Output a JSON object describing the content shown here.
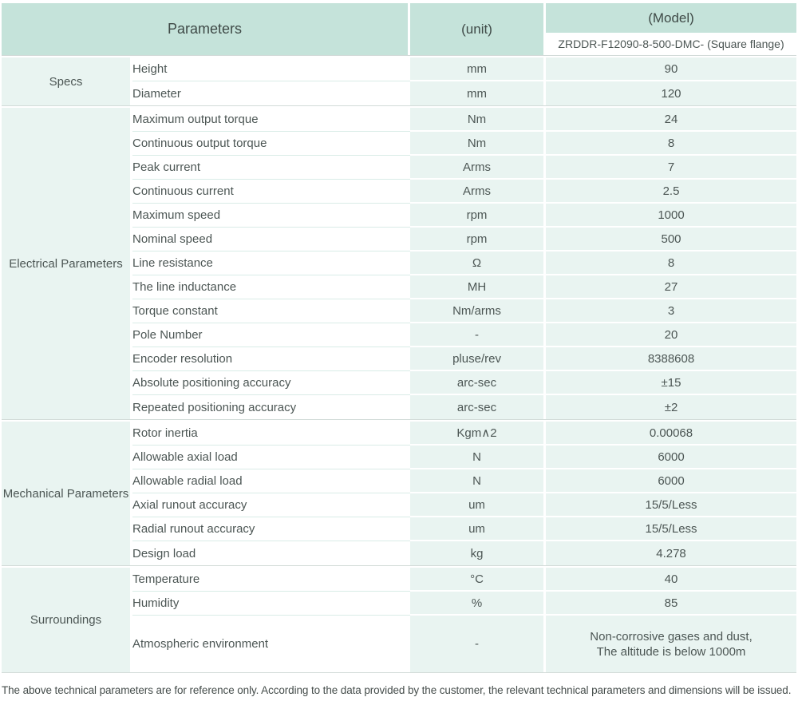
{
  "colors": {
    "header_bg": "#c5e3da",
    "row_bg": "#e9f4f1",
    "param_separator": "#d9ece7",
    "divider_line": "#d2dbd8",
    "header_text": "#3f4a47",
    "body_text": "#4c5654",
    "footer_text": "#454d4b"
  },
  "header": {
    "parameters": "Parameters",
    "unit": "(unit)",
    "model": "(Model)",
    "model_value": "ZRDDR-F12090-8-500-DMC- (Square flange)"
  },
  "sections": [
    {
      "name": "Specs",
      "rows": [
        {
          "param": "Height",
          "unit": "mm",
          "value": "90"
        },
        {
          "param": "Diameter",
          "unit": "mm",
          "value": "120"
        }
      ]
    },
    {
      "name": "Electrical Parameters",
      "rows": [
        {
          "param": "Maximum output torque",
          "unit": "Nm",
          "value": "24"
        },
        {
          "param": "Continuous output torque",
          "unit": "Nm",
          "value": "8"
        },
        {
          "param": "Peak current",
          "unit": "Arms",
          "value": "7"
        },
        {
          "param": "Continuous current",
          "unit": "Arms",
          "value": "2.5"
        },
        {
          "param": "Maximum speed",
          "unit": "rpm",
          "value": "1000"
        },
        {
          "param": "Nominal speed",
          "unit": "rpm",
          "value": "500"
        },
        {
          "param": "Line resistance",
          "unit": "Ω",
          "value": "8"
        },
        {
          "param": "The line inductance",
          "unit": "MH",
          "value": "27"
        },
        {
          "param": "Torque constant",
          "unit": "Nm/arms",
          "value": "3"
        },
        {
          "param": "Pole Number",
          "unit": "-",
          "value": "20"
        },
        {
          "param": "Encoder resolution",
          "unit": "pluse/rev",
          "value": "8388608"
        },
        {
          "param": "Absolute positioning accuracy",
          "unit": "arc-sec",
          "value": "±15"
        },
        {
          "param": "Repeated positioning accuracy",
          "unit": "arc-sec",
          "value": "±2"
        }
      ]
    },
    {
      "name": "Mechanical Parameters",
      "rows": [
        {
          "param": "Rotor inertia",
          "unit": "Kgm∧2",
          "value": "0.00068"
        },
        {
          "param": "Allowable axial load",
          "unit": "N",
          "value": "6000"
        },
        {
          "param": "Allowable radial load",
          "unit": "N",
          "value": "6000"
        },
        {
          "param": "Axial runout accuracy",
          "unit": "um",
          "value": "15/5/Less"
        },
        {
          "param": "Radial runout accuracy",
          "unit": "um",
          "value": "15/5/Less"
        },
        {
          "param": "Design load",
          "unit": "kg",
          "value": "4.278"
        }
      ]
    },
    {
      "name": "Surroundings",
      "rows": [
        {
          "param": "Temperature",
          "unit": "°C",
          "value": "40"
        },
        {
          "param": "Humidity",
          "unit": "%",
          "value": "85"
        },
        {
          "param": "Atmospheric environment",
          "unit": "-",
          "value": "Non-corrosive gases and dust,\nThe altitude is below 1000m"
        }
      ]
    }
  ],
  "footer": {
    "note": "The above technical parameters are for reference only. According to the data provided by the customer, the relevant technical parameters and dimensions will be issued."
  }
}
